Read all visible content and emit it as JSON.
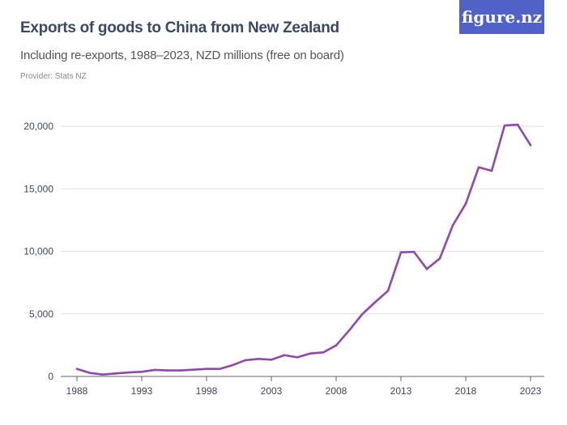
{
  "header": {
    "title": "Exports of goods to China from New Zealand",
    "subtitle": "Including re-exports, 1988–2023, NZD millions (free on board)",
    "provider": "Provider: Stats NZ",
    "logo": "figure.nz"
  },
  "colors": {
    "line": "#9147b0",
    "logo_bg": "#5062c8",
    "text": "#3b4766"
  },
  "chart_data": {
    "type": "line",
    "title": "Exports of goods to China from New Zealand",
    "subtitle": "Including re-exports, 1988–2023, NZD millions (free on board)",
    "xlabel": "",
    "ylabel": "",
    "ylim": [
      0,
      20000
    ],
    "xlim": [
      1988,
      2023
    ],
    "grid": true,
    "x_ticks": [
      "1988",
      "1993",
      "1998",
      "2003",
      "2008",
      "2013",
      "2018",
      "2023"
    ],
    "y_ticks": [
      "0",
      "5,000",
      "10,000",
      "15,000",
      "20,000"
    ],
    "x": [
      1988,
      1989,
      1990,
      1991,
      1992,
      1993,
      1994,
      1995,
      1996,
      1997,
      1998,
      1999,
      2000,
      2001,
      2002,
      2003,
      2004,
      2005,
      2006,
      2007,
      2008,
      2009,
      2010,
      2011,
      2012,
      2013,
      2014,
      2015,
      2016,
      2017,
      2018,
      2019,
      2020,
      2021,
      2022,
      2023
    ],
    "values": [
      600,
      280,
      150,
      240,
      320,
      370,
      520,
      480,
      480,
      540,
      600,
      600,
      900,
      1300,
      1400,
      1340,
      1700,
      1530,
      1830,
      1920,
      2480,
      3670,
      4960,
      5930,
      6840,
      9920,
      9960,
      8590,
      9430,
      12080,
      13810,
      16720,
      16440,
      20060,
      20130,
      18490
    ]
  }
}
